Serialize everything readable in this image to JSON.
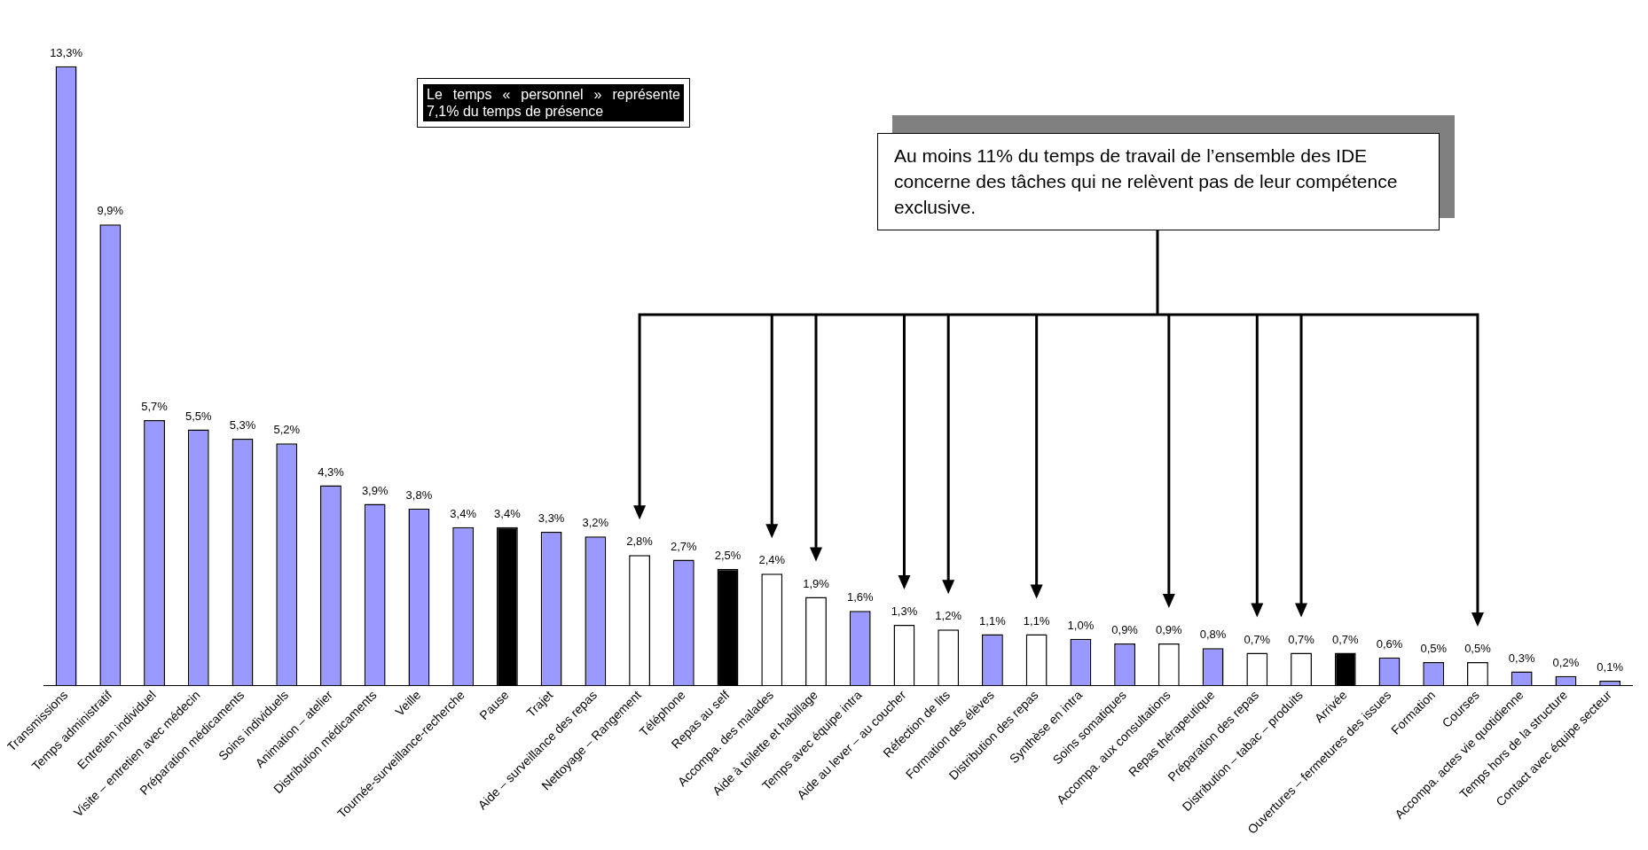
{
  "chart_data": {
    "type": "bar",
    "grid": false,
    "legend": false,
    "categories": [
      "Transmissions",
      "Temps administratif",
      "Entretien individuel",
      "Visite – entretien avec médecin",
      "Préparation médicaments",
      "Soins individuels",
      "Animation – atelier",
      "Distribution médicaments",
      "Veille",
      "Tournée-surveillance-recherche",
      "Pause",
      "Trajet",
      "Aide – surveillance des repas",
      "Nettoyage – Rangement",
      "Téléphone",
      "Repas au self",
      "Accompa. des malades",
      "Aide à toilette et habillage",
      "Temps avec équipe intra",
      "Aide au lever – au coucher",
      "Réfection de lits",
      "Formation des élèves",
      "Distribution des repas",
      "Synthèse en intra",
      "Soins somatiques",
      "Accompa. aux consultations",
      "Repas thérapeutique",
      "Préparation des repas",
      "Distribution – tabac – produits",
      "Arrivée",
      "Ouvertures – fermetures des issues",
      "Formation",
      "Courses",
      "Accompa. actes vie quotidienne",
      "Temps hors de la structure",
      "Contact avec équipe secteur"
    ],
    "values": [
      13.3,
      9.9,
      5.7,
      5.5,
      5.3,
      5.2,
      4.3,
      3.9,
      3.8,
      3.4,
      3.4,
      3.3,
      3.2,
      2.8,
      2.7,
      2.5,
      2.4,
      1.9,
      1.6,
      1.3,
      1.2,
      1.1,
      1.1,
      1.0,
      0.9,
      0.9,
      0.8,
      0.7,
      0.7,
      0.7,
      0.6,
      0.5,
      0.5,
      0.3,
      0.2,
      0.1
    ],
    "value_labels": [
      "13,3%",
      "9,9%",
      "5,7%",
      "5,5%",
      "5,3%",
      "5,2%",
      "4,3%",
      "3,9%",
      "3,8%",
      "3,4%",
      "3,4%",
      "3,3%",
      "3,2%",
      "2,8%",
      "2,7%",
      "2,5%",
      "2,4%",
      "1,9%",
      "1,6%",
      "1,3%",
      "1,2%",
      "1,1%",
      "1,1%",
      "1,0%",
      "0,9%",
      "0,9%",
      "0,8%",
      "0,7%",
      "0,7%",
      "0,7%",
      "0,6%",
      "0,5%",
      "0,5%",
      "0,3%",
      "0,2%",
      "0,1%"
    ],
    "colors": [
      "#9999ff",
      "#9999ff",
      "#9999ff",
      "#9999ff",
      "#9999ff",
      "#9999ff",
      "#9999ff",
      "#9999ff",
      "#9999ff",
      "#9999ff",
      "#000000",
      "#9999ff",
      "#9999ff",
      "#ffffff",
      "#9999ff",
      "#000000",
      "#ffffff",
      "#ffffff",
      "#9999ff",
      "#ffffff",
      "#ffffff",
      "#9999ff",
      "#ffffff",
      "#9999ff",
      "#9999ff",
      "#ffffff",
      "#9999ff",
      "#ffffff",
      "#ffffff",
      "#000000",
      "#9999ff",
      "#9999ff",
      "#ffffff",
      "#9999ff",
      "#9999ff",
      "#9999ff"
    ],
    "annotations": [
      "Le temps « personnel » représente 7,1% du temps de présence",
      "Au moins 11% du temps de travail de l’ensemble des IDE concerne des tâches qui ne relèvent pas de leur compétence exclusive."
    ]
  }
}
